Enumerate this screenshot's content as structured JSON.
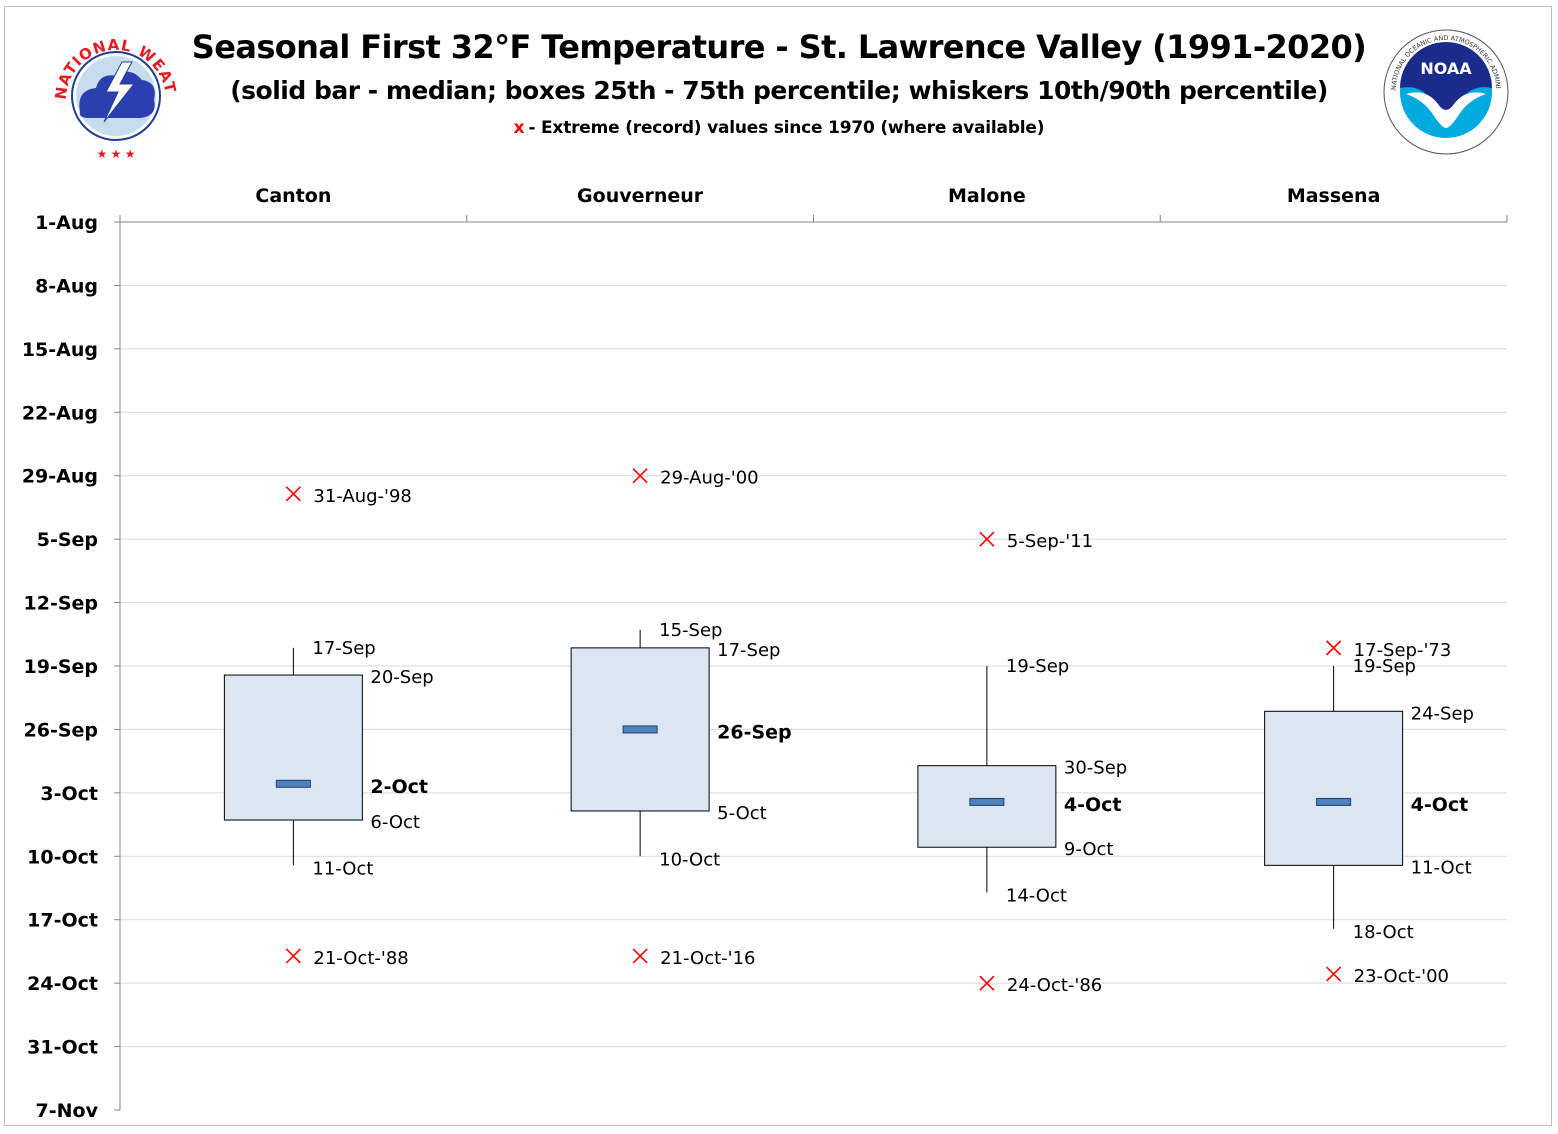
{
  "header": {
    "title": "Seasonal First 32°F Temperature - St. Lawrence Valley (1991-2020)",
    "subtitle": "(solid bar - median; boxes 25th - 75th percentile; whiskers 10th/90th percentile)",
    "note_marker": "x",
    "note_text": "- Extreme (record) values since 1970 (where available)"
  },
  "logos": {
    "nws_text": "NATIONAL WEATHER SERVICE",
    "noaa_text": "NOAA",
    "noaa_ring_text": "NATIONAL OCEANIC AND ATMOSPHERIC ADMINISTRATION · U.S. DEPARTMENT OF COMMERCE"
  },
  "chart_data": {
    "type": "box",
    "title": "Seasonal First 32°F Temperature - St. Lawrence Valley (1991-2020)",
    "y_axis_origin_date": "1-Aug",
    "ylim_days": [
      0,
      98
    ],
    "y_ticks": [
      "1-Aug",
      "8-Aug",
      "15-Aug",
      "22-Aug",
      "29-Aug",
      "5-Sep",
      "12-Sep",
      "19-Sep",
      "26-Sep",
      "3-Oct",
      "10-Oct",
      "17-Oct",
      "24-Oct",
      "31-Oct",
      "7-Nov"
    ],
    "y_reversed": true,
    "grid": true,
    "colors": {
      "box_fill": "#dce6f2",
      "median": "#4f81bd",
      "extreme": "#ff0000",
      "grid": "#d9d9d9"
    },
    "categories": [
      "Canton",
      "Gouverneur",
      "Malone",
      "Massena"
    ],
    "series": [
      {
        "station": "Canton",
        "p10": {
          "day": 47,
          "label": "17-Sep"
        },
        "p25": {
          "day": 50,
          "label": "20-Sep"
        },
        "median": {
          "day": 62,
          "label": "2-Oct"
        },
        "p75": {
          "day": 66,
          "label": "6-Oct"
        },
        "p90": {
          "day": 71,
          "label": "11-Oct"
        },
        "record_early": {
          "day": 30,
          "label": "31-Aug-'98"
        },
        "record_late": {
          "day": 81,
          "label": "21-Oct-'88"
        }
      },
      {
        "station": "Gouverneur",
        "p10": {
          "day": 45,
          "label": "15-Sep"
        },
        "p25": {
          "day": 47,
          "label": "17-Sep"
        },
        "median": {
          "day": 56,
          "label": "26-Sep"
        },
        "p75": {
          "day": 65,
          "label": "5-Oct"
        },
        "p90": {
          "day": 70,
          "label": "10-Oct"
        },
        "record_early": {
          "day": 28,
          "label": "29-Aug-'00"
        },
        "record_late": {
          "day": 81,
          "label": "21-Oct-'16"
        }
      },
      {
        "station": "Malone",
        "p10": {
          "day": 49,
          "label": "19-Sep"
        },
        "p25": {
          "day": 60,
          "label": "30-Sep"
        },
        "median": {
          "day": 64,
          "label": "4-Oct"
        },
        "p75": {
          "day": 69,
          "label": "9-Oct"
        },
        "p90": {
          "day": 74,
          "label": "14-Oct"
        },
        "record_early": {
          "day": 35,
          "label": "5-Sep-'11"
        },
        "record_late": {
          "day": 84,
          "label": "24-Oct-'86"
        }
      },
      {
        "station": "Massena",
        "p10": {
          "day": 49,
          "label": "19-Sep"
        },
        "p25": {
          "day": 54,
          "label": "24-Sep"
        },
        "median": {
          "day": 64,
          "label": "4-Oct"
        },
        "p75": {
          "day": 71,
          "label": "11-Oct"
        },
        "p90": {
          "day": 78,
          "label": "18-Oct"
        },
        "record_early": {
          "day": 47,
          "label": "17-Sep-'73"
        },
        "record_late": {
          "day": 83,
          "label": "23-Oct-'00"
        }
      }
    ]
  }
}
